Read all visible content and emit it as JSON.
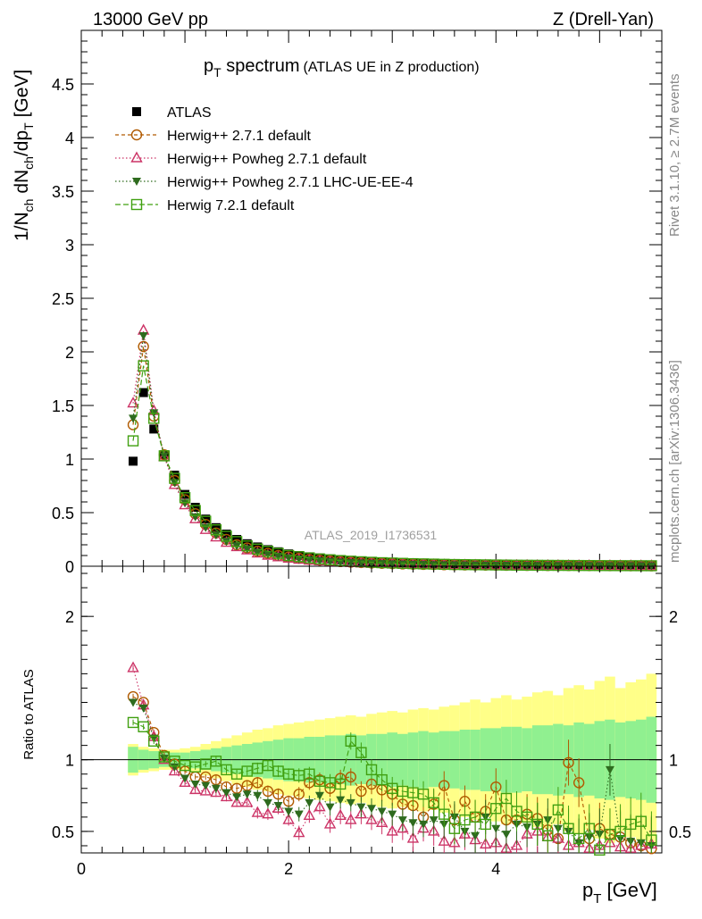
{
  "header": {
    "left": "13000 GeV pp",
    "right": "Z (Drell-Yan)"
  },
  "side_labels": {
    "rivet": "Rivet 3.1.10, ≥ 2.7M events",
    "mcplots": "mcplots.cern.ch [arXiv:1306.3436]"
  },
  "watermark": "ATLAS_2019_I1736531",
  "colors": {
    "atlas": "#000000",
    "herwig271": "#b05a00",
    "powheg271": "#cc3366",
    "powheg_ue": "#2e6b1e",
    "herwig721": "#40a010",
    "band_inner": "#90f090",
    "band_outer": "#ffff88"
  },
  "chart_data": [
    {
      "type": "line",
      "panel": "main",
      "title_main": "p",
      "title_sub": "T",
      "title_rest": " spectrum",
      "title_paren": "(ATLAS UE in Z production)",
      "ylabel": "1/N_ch dN_ch/dp_T [GeV]",
      "ylabel_parts": {
        "a": "1/N",
        "b": "ch",
        "c": " dN",
        "d": "ch",
        "e": "/dp",
        "f": "T",
        "g": " [GeV]"
      },
      "xlim": [
        0,
        5.6
      ],
      "ylim": [
        0,
        5.0
      ],
      "yticks": [
        0,
        0.5,
        1,
        1.5,
        2,
        2.5,
        3,
        3.5,
        4,
        4.5
      ],
      "ytick_labels": [
        "0",
        "0.5",
        "1",
        "1.5",
        "2",
        "2.5",
        "3",
        "3.5",
        "4",
        "4.5"
      ],
      "x": [
        0.5,
        0.6,
        0.7,
        0.8,
        0.9,
        1.0,
        1.1,
        1.2,
        1.3,
        1.4,
        1.5,
        1.6,
        1.7,
        1.8,
        1.9,
        2.0,
        2.1,
        2.2,
        2.3,
        2.4,
        2.5,
        2.6,
        2.7,
        2.8,
        2.9,
        3.0,
        3.1,
        3.2,
        3.3,
        3.4,
        3.5,
        3.6,
        3.7,
        3.8,
        3.9,
        4.0,
        4.1,
        4.2,
        4.3,
        4.4,
        4.5,
        4.6,
        4.7,
        4.8,
        4.9,
        5.0,
        5.1,
        5.2,
        5.3,
        5.4,
        5.5
      ],
      "series": [
        {
          "name": "ATLAS",
          "marker": "square-filled",
          "values": [
            0.98,
            1.62,
            1.28,
            1.04,
            0.85,
            0.67,
            0.55,
            0.44,
            0.36,
            0.3,
            0.25,
            0.21,
            0.18,
            0.155,
            0.135,
            0.115,
            0.1,
            0.088,
            0.078,
            0.069,
            0.061,
            0.054,
            0.048,
            0.043,
            0.039,
            0.035,
            0.032,
            0.029,
            0.026,
            0.024,
            0.022,
            0.02,
            0.018,
            0.017,
            0.016,
            0.015,
            0.014,
            0.013,
            0.012,
            0.011,
            0.01,
            0.0095,
            0.009,
            0.0085,
            0.008,
            0.0075,
            0.007,
            0.0066,
            0.0062,
            0.0058,
            0.0055
          ]
        },
        {
          "name": "Herwig++ 2.7.1 default",
          "marker": "circle-open",
          "dash": "4,3",
          "values": [
            1.32,
            2.05,
            1.4,
            1.04,
            0.8,
            0.62,
            0.49,
            0.39,
            0.31,
            0.25,
            0.2,
            0.17,
            0.14,
            0.12,
            0.1,
            0.086,
            0.074,
            0.064,
            0.056,
            0.049,
            0.043,
            0.038,
            0.034,
            0.03,
            0.027,
            0.024,
            0.021,
            0.019,
            0.017,
            0.016,
            0.014,
            0.013,
            0.012,
            0.011,
            0.01,
            0.009,
            0.0085,
            0.008,
            0.0075,
            0.007,
            0.0065,
            0.006,
            0.0057,
            0.0054,
            0.0051,
            0.0048,
            0.0045,
            0.0042,
            0.004,
            0.0038,
            0.0036
          ]
        },
        {
          "name": "Herwig++ Powheg 2.7.1 default",
          "marker": "triangle-open",
          "dash": "1.5,2.5",
          "values": [
            1.52,
            2.2,
            1.45,
            1.02,
            0.76,
            0.57,
            0.44,
            0.34,
            0.27,
            0.22,
            0.18,
            0.15,
            0.12,
            0.1,
            0.085,
            0.072,
            0.062,
            0.054,
            0.047,
            0.041,
            0.036,
            0.032,
            0.028,
            0.025,
            0.022,
            0.02,
            0.018,
            0.016,
            0.015,
            0.013,
            0.012,
            0.011,
            0.01,
            0.009,
            0.0085,
            0.008,
            0.0075,
            0.007,
            0.0065,
            0.006,
            0.0056,
            0.0052,
            0.005,
            0.0047,
            0.0044,
            0.0042,
            0.004,
            0.0038,
            0.0036,
            0.0034,
            0.0032
          ]
        },
        {
          "name": "Herwig++ Powheg 2.7.1 LHC-UE-EE-4",
          "marker": "triangle-down-filled",
          "dash": "1.5,2.5",
          "values": [
            1.38,
            2.15,
            1.43,
            1.03,
            0.78,
            0.59,
            0.46,
            0.36,
            0.29,
            0.23,
            0.19,
            0.16,
            0.13,
            0.11,
            0.092,
            0.078,
            0.067,
            0.058,
            0.05,
            0.044,
            0.039,
            0.034,
            0.03,
            0.027,
            0.024,
            0.021,
            0.019,
            0.017,
            0.016,
            0.014,
            0.013,
            0.012,
            0.011,
            0.01,
            0.009,
            0.0085,
            0.008,
            0.0075,
            0.007,
            0.0065,
            0.006,
            0.0056,
            0.0053,
            0.005,
            0.0047,
            0.0044,
            0.0042,
            0.004,
            0.0038,
            0.0036,
            0.0034
          ]
        },
        {
          "name": "Herwig 7.2.1 default",
          "marker": "square-open",
          "dash": "6,3",
          "values": [
            1.17,
            1.87,
            1.38,
            1.03,
            0.82,
            0.64,
            0.52,
            0.42,
            0.34,
            0.28,
            0.23,
            0.19,
            0.16,
            0.14,
            0.12,
            0.1,
            0.089,
            0.078,
            0.068,
            0.06,
            0.053,
            0.047,
            0.042,
            0.037,
            0.033,
            0.03,
            0.027,
            0.024,
            0.022,
            0.02,
            0.018,
            0.016,
            0.015,
            0.014,
            0.013,
            0.012,
            0.011,
            0.01,
            0.0095,
            0.009,
            0.0085,
            0.008,
            0.0075,
            0.007,
            0.0066,
            0.0062,
            0.0058,
            0.0055,
            0.0052,
            0.0049,
            0.0046
          ]
        }
      ]
    },
    {
      "type": "line",
      "panel": "ratio",
      "ylabel": "Ratio to ATLAS",
      "xlabel_main": "p",
      "xlabel_sub": "T",
      "xlabel_rest": " [GeV]",
      "xlim": [
        0,
        5.6
      ],
      "ylim": [
        0.35,
        2.35
      ],
      "xticks": [
        0,
        2,
        4
      ],
      "xtick_labels": [
        "0",
        "2",
        "4"
      ],
      "yticks": [
        0.5,
        1,
        2
      ],
      "ytick_labels": [
        "0.5",
        "1",
        "2"
      ],
      "x": [
        0.5,
        0.6,
        0.7,
        0.8,
        0.9,
        1.0,
        1.1,
        1.2,
        1.3,
        1.4,
        1.5,
        1.6,
        1.7,
        1.8,
        1.9,
        2.0,
        2.1,
        2.2,
        2.3,
        2.4,
        2.5,
        2.6,
        2.7,
        2.8,
        2.9,
        3.0,
        3.1,
        3.2,
        3.3,
        3.4,
        3.5,
        3.6,
        3.7,
        3.8,
        3.9,
        4.0,
        4.1,
        4.2,
        4.3,
        4.4,
        4.5,
        4.6,
        4.7,
        4.8,
        4.9,
        5.0,
        5.1,
        5.2,
        5.3,
        5.4,
        5.5
      ],
      "band_inner_halfwidth": [
        0.09,
        0.07,
        0.06,
        0.05,
        0.05,
        0.05,
        0.06,
        0.07,
        0.08,
        0.09,
        0.1,
        0.11,
        0.12,
        0.13,
        0.14,
        0.15,
        0.15,
        0.16,
        0.16,
        0.17,
        0.17,
        0.18,
        0.17,
        0.18,
        0.18,
        0.19,
        0.18,
        0.19,
        0.2,
        0.19,
        0.2,
        0.2,
        0.21,
        0.21,
        0.22,
        0.22,
        0.23,
        0.23,
        0.22,
        0.24,
        0.24,
        0.25,
        0.24,
        0.26,
        0.25,
        0.27,
        0.28,
        0.26,
        0.27,
        0.28,
        0.3
      ],
      "band_outer_halfwidth": [
        0.11,
        0.09,
        0.08,
        0.07,
        0.07,
        0.08,
        0.09,
        0.11,
        0.13,
        0.15,
        0.17,
        0.19,
        0.21,
        0.22,
        0.24,
        0.25,
        0.26,
        0.27,
        0.28,
        0.29,
        0.3,
        0.31,
        0.3,
        0.32,
        0.33,
        0.34,
        0.33,
        0.35,
        0.36,
        0.35,
        0.37,
        0.38,
        0.4,
        0.42,
        0.4,
        0.43,
        0.45,
        0.42,
        0.44,
        0.47,
        0.48,
        0.45,
        0.5,
        0.52,
        0.49,
        0.55,
        0.58,
        0.5,
        0.54,
        0.56,
        0.6
      ],
      "series": [
        {
          "name": "Herwig++ 2.7.1 default",
          "values": [
            1.44,
            1.4,
            1.19,
            1.03,
            0.97,
            0.92,
            0.88,
            0.88,
            0.86,
            0.81,
            0.8,
            0.82,
            0.84,
            0.78,
            0.76,
            0.71,
            0.76,
            0.84,
            0.86,
            0.8,
            0.87,
            0.88,
            0.78,
            0.83,
            0.79,
            0.76,
            0.69,
            0.68,
            0.6,
            0.69,
            0.82,
            0.58,
            0.71,
            0.6,
            0.64,
            0.81,
            0.58,
            0.58,
            0.62,
            0.59,
            0.51,
            0.45,
            0.98,
            0.84,
            0.45,
            0.52,
            0.48,
            0.46,
            0.42,
            0.4,
            0.38
          ],
          "err": [
            0.02,
            0.02,
            0.02,
            0.02,
            0.02,
            0.02,
            0.02,
            0.02,
            0.03,
            0.03,
            0.03,
            0.03,
            0.04,
            0.04,
            0.04,
            0.04,
            0.05,
            0.05,
            0.05,
            0.06,
            0.06,
            0.06,
            0.07,
            0.07,
            0.08,
            0.08,
            0.08,
            0.09,
            0.09,
            0.1,
            0.1,
            0.11,
            0.11,
            0.12,
            0.12,
            0.13,
            0.13,
            0.14,
            0.14,
            0.15,
            0.15,
            0.16,
            0.16,
            0.17,
            0.17,
            0.18,
            0.18,
            0.19,
            0.19,
            0.2,
            0.2
          ]
        },
        {
          "name": "Herwig++ Powheg 2.7.1 default",
          "values": [
            1.64,
            1.38,
            1.16,
            1.0,
            0.92,
            0.84,
            0.79,
            0.78,
            0.77,
            0.74,
            0.7,
            0.7,
            0.63,
            0.62,
            0.66,
            0.58,
            0.49,
            0.61,
            0.67,
            0.55,
            0.61,
            0.58,
            0.62,
            0.58,
            0.56,
            0.5,
            0.52,
            0.45,
            0.52,
            0.5,
            0.43,
            0.42,
            0.48,
            0.44,
            0.41,
            0.42,
            0.38,
            0.4,
            0.48,
            0.5,
            0.46,
            0.45,
            0.4,
            0.42,
            0.38,
            0.4,
            0.42,
            0.39,
            0.38,
            0.4,
            0.41
          ],
          "err": [
            0.02,
            0.02,
            0.02,
            0.02,
            0.02,
            0.02,
            0.02,
            0.02,
            0.03,
            0.03,
            0.03,
            0.03,
            0.04,
            0.04,
            0.04,
            0.04,
            0.05,
            0.05,
            0.05,
            0.06,
            0.06,
            0.06,
            0.07,
            0.07,
            0.08,
            0.08,
            0.08,
            0.09,
            0.09,
            0.1,
            0.1,
            0.11,
            0.11,
            0.12,
            0.12,
            0.13,
            0.13,
            0.14,
            0.14,
            0.15,
            0.15,
            0.16,
            0.16,
            0.17,
            0.17,
            0.18,
            0.18,
            0.19,
            0.19,
            0.2,
            0.2
          ]
        },
        {
          "name": "Herwig++ Powheg 2.7.1 LHC-UE-EE-4",
          "values": [
            1.4,
            1.36,
            1.15,
            1.01,
            0.95,
            0.87,
            0.83,
            0.82,
            0.8,
            0.77,
            0.74,
            0.76,
            0.75,
            0.7,
            0.68,
            0.64,
            0.62,
            0.7,
            0.75,
            0.67,
            0.72,
            0.7,
            0.67,
            0.66,
            0.64,
            0.62,
            0.58,
            0.56,
            0.55,
            0.58,
            0.55,
            0.6,
            0.5,
            0.47,
            0.6,
            0.52,
            0.48,
            0.55,
            0.53,
            0.55,
            0.58,
            0.52,
            0.5,
            0.42,
            0.46,
            0.48,
            0.93,
            0.45,
            0.43,
            0.42,
            0.4
          ],
          "err": [
            0.02,
            0.02,
            0.02,
            0.02,
            0.02,
            0.02,
            0.02,
            0.02,
            0.03,
            0.03,
            0.03,
            0.03,
            0.04,
            0.04,
            0.04,
            0.04,
            0.05,
            0.05,
            0.05,
            0.06,
            0.06,
            0.06,
            0.07,
            0.07,
            0.08,
            0.08,
            0.08,
            0.09,
            0.09,
            0.1,
            0.1,
            0.11,
            0.11,
            0.12,
            0.12,
            0.13,
            0.13,
            0.14,
            0.14,
            0.15,
            0.15,
            0.16,
            0.16,
            0.17,
            0.17,
            0.18,
            0.18,
            0.19,
            0.19,
            0.2,
            0.2
          ]
        },
        {
          "name": "Herwig 7.2.1 default",
          "values": [
            1.26,
            1.23,
            1.13,
            1.02,
            0.99,
            0.96,
            0.95,
            0.97,
            0.99,
            0.93,
            0.9,
            0.92,
            0.94,
            0.96,
            0.92,
            0.9,
            0.89,
            0.9,
            0.85,
            0.84,
            0.83,
            1.13,
            1.05,
            0.93,
            0.86,
            0.8,
            0.78,
            0.77,
            0.76,
            0.7,
            0.62,
            0.52,
            0.58,
            0.6,
            0.55,
            0.66,
            0.73,
            0.64,
            0.6,
            0.55,
            0.47,
            0.65,
            0.52,
            0.45,
            0.52,
            0.37,
            0.48,
            0.5,
            0.55,
            0.57,
            0.44
          ],
          "err": [
            0.02,
            0.02,
            0.02,
            0.02,
            0.02,
            0.02,
            0.02,
            0.02,
            0.03,
            0.03,
            0.03,
            0.03,
            0.04,
            0.04,
            0.04,
            0.04,
            0.05,
            0.05,
            0.05,
            0.06,
            0.06,
            0.06,
            0.07,
            0.07,
            0.08,
            0.08,
            0.08,
            0.09,
            0.09,
            0.1,
            0.1,
            0.11,
            0.11,
            0.12,
            0.12,
            0.13,
            0.13,
            0.14,
            0.14,
            0.15,
            0.15,
            0.16,
            0.16,
            0.17,
            0.17,
            0.18,
            0.18,
            0.19,
            0.19,
            0.2,
            0.2
          ]
        }
      ]
    }
  ]
}
